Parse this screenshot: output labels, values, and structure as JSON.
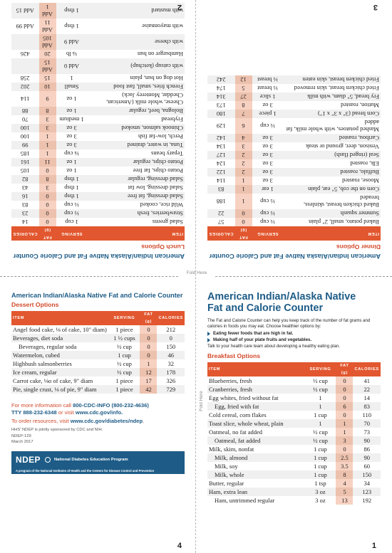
{
  "fold_label": "Fold Here",
  "page2": {
    "header": "American Indian/Alaska Native Fat and Calorie Counter",
    "subheader": "Lunch Options",
    "cols": [
      "ITEM",
      "SERVING",
      "FAT (g)",
      "CALORIES"
    ],
    "rows": [
      [
        "Salad greens",
        "1 cup",
        "0",
        "14"
      ],
      [
        "Strawberries, fresh",
        "½ cup",
        "0",
        "23"
      ],
      [
        "Wild rice, cooked",
        "½ cup",
        "0",
        "83"
      ],
      [
        "Salad dressing, fat free",
        "1 tbsp",
        "0",
        "16"
      ],
      [
        "Salad dressing, low fat",
        "1 tbsp",
        "3",
        "43"
      ],
      [
        "Salad dressing, regular",
        "1 tbsp",
        "8",
        "82"
      ],
      [
        "Potato chips, fat free",
        "1 oz",
        "0",
        "105"
      ],
      [
        "Potato chips, regular",
        "1 oz",
        "11",
        "161"
      ],
      [
        "Tepary beans",
        "¼ cup",
        "1",
        "185"
      ],
      [
        "Tuna, in water, drained",
        "3 oz",
        "1",
        "99"
      ],
      [
        "Perch, low-fat fish",
        "3 oz",
        "1",
        "100"
      ],
      [
        "Chinook salmon, smoked",
        "3 oz",
        "3",
        "100"
      ],
      [
        "Frybread",
        "1 medium",
        "3",
        "70"
      ],
      [
        "Bologna, beef, regular",
        "1 oz",
        "8",
        "88"
      ],
      [
        "Cheese, whole milk (American, Cheddar, Monterey Jack)",
        "1 oz",
        "9",
        "114"
      ],
      [
        "French fries, small, fast food",
        "Small",
        "10",
        "202"
      ],
      [
        "Hot dog on bun, plain",
        "1",
        "15",
        "258"
      ],
      [
        "with catsup (ketchup)",
        "Add 0",
        "Add 15",
        ""
      ],
      [
        "Hamburger on bun",
        "¼ lb",
        "20",
        "426"
      ],
      [
        "with cheese",
        "Add 9",
        "Add 105",
        ""
      ],
      [
        "with mayonnaise",
        "1 tbsp",
        "Add 11",
        "Add 99"
      ],
      [
        "with mustard",
        "1 tbsp",
        "Add 1",
        "Add 15"
      ]
    ],
    "page_number": "2"
  },
  "page3": {
    "header": "American Indian/Alaska Native Fat and Calorie Counter",
    "subheader": "Dinner Options",
    "cols": [
      "ITEM",
      "SERVING",
      "FAT (g)",
      "CALORIES"
    ],
    "rows": [
      [
        "Baked potato, small, 2\" plain",
        "½ cup",
        "0",
        "57"
      ],
      [
        "Summer squash",
        "½ cup",
        "0",
        "22"
      ],
      [
        "Baked chicken breast, skinless, breaded",
        "½ cup",
        "1",
        "188"
      ],
      [
        "Corn on the cob, 5\" ear, plain",
        "1 ear",
        "1",
        "83"
      ],
      [
        "Moose, roasted",
        "3 oz",
        "1",
        "114"
      ],
      [
        "Buffalo, roasted",
        "3 oz",
        "2",
        "122"
      ],
      [
        "Elk, roasted",
        "3 oz",
        "2",
        "124"
      ],
      [
        "Seal (ringed flash)",
        "3 oz",
        "2",
        "127"
      ],
      [
        "Venison, deer, ground or steak",
        "3 oz",
        "3",
        "134"
      ],
      [
        "Caribou, roasted",
        "3 oz",
        "4",
        "142"
      ],
      [
        "Mashed potatoes, with whole milk, fat added",
        "½ cup",
        "6",
        "129"
      ],
      [
        "Corn bread (3\" x 3\" x 1\")",
        "1 piece",
        "7",
        "180"
      ],
      [
        "Mutton, roasted",
        "3 oz",
        "8",
        "173"
      ],
      [
        "Fry bread, 5\" diam, with milk",
        "1 slice",
        "27",
        "314"
      ],
      [
        "Fried chicken breast, skin removed",
        "½ breast",
        "5",
        "174"
      ],
      [
        "Fried chicken breast, skin eaten",
        "½ breast",
        "12",
        "242"
      ]
    ],
    "page_number": "3"
  },
  "page4": {
    "header": "American Indian/Alaska Native Fat and Calorie Counter",
    "subheader": "Dessert Options",
    "cols": [
      "ITEM",
      "SERVING",
      "FAT (g)",
      "CALORIES"
    ],
    "rows": [
      {
        "item": "Angel food cake, ⅛ of cake, 10\" diam)",
        "srv": "1 piece",
        "fat": "0",
        "cal": "212",
        "indent": false
      },
      {
        "item": "Beverages, diet soda",
        "srv": "1 ½ cups",
        "fat": "0",
        "cal": "0",
        "indent": false
      },
      {
        "item": "Beverages, regular soda",
        "srv": "½ cup",
        "fat": "0",
        "cal": "150",
        "indent": true
      },
      {
        "item": "Watermelon, cubed",
        "srv": "1 cup",
        "fat": "0",
        "cal": "46",
        "indent": false
      },
      {
        "item": "Highbush salmonberries",
        "srv": "½ cup",
        "fat": "1",
        "cal": "32",
        "indent": false
      },
      {
        "item": "Ice cream, regular",
        "srv": "½ cup",
        "fat": "12",
        "cal": "178",
        "indent": false
      },
      {
        "item": "Carrot cake, ⅛o of cake, 9\" diam",
        "srv": "1 piece",
        "fat": "17",
        "cal": "326",
        "indent": false
      },
      {
        "item": "Pie, single crust, ⅛ of pie, 9\" diam",
        "srv": "1 piece",
        "fat": "42",
        "cal": "729",
        "indent": false
      }
    ],
    "more_info": "For more information call",
    "phone": "800-CDC-INFO (800-232-4636)",
    "tty": "TTY 888-232-6348",
    "or_visit": "or visit",
    "site1": "www.cdc.gov/info",
    "order": "To order resources, visit",
    "site2": "www.cdc.gov/diabetes/ndep",
    "hhs": "HHS' NDEP is jointly sponsored by CDC and NIH.",
    "ndep_code": "NDEP-129",
    "date": "March 2017",
    "logo": "NDEP",
    "logo_name": "National Diabetes Education Program",
    "logo_tag": "A program of the National Institutes of Health and the Centers for Disease Control and Prevention",
    "page_number": "4"
  },
  "page1": {
    "title_line1": "American Indian/Alaska Native",
    "title_line2": "Fat and Calorie Counter",
    "intro": "The Fat and Calorie Counter can help you keep track of the number of fat grams and calories in foods you may eat. Choose healthier options by:",
    "bullet1": "Eating fewer foods that are high in fat.",
    "bullet2": "Making half of your plate fruits and vegetables.",
    "talk": "Talk to your health care team about developing a healthy eating plan.",
    "subheader": "Breakfast Options",
    "cols": [
      "ITEM",
      "SERVING",
      "FAT (g)",
      "CALORIES"
    ],
    "rows": [
      {
        "item": "Blueberries, fresh",
        "srv": "½ cup",
        "fat": "0",
        "cal": "41",
        "indent": false
      },
      {
        "item": "Cranberries, fresh",
        "srv": "½ cup",
        "fat": "0",
        "cal": "22",
        "indent": false
      },
      {
        "item": "Egg whites, fried without fat",
        "srv": "1",
        "fat": "0",
        "cal": "14",
        "indent": false
      },
      {
        "item": "Egg, fried with fat",
        "srv": "1",
        "fat": "6",
        "cal": "83",
        "indent": true
      },
      {
        "item": "Cold cereal, corn flakes",
        "srv": "1 cup",
        "fat": "0",
        "cal": "110",
        "indent": false
      },
      {
        "item": "Toast slice, whole wheat, plain",
        "srv": "1",
        "fat": "1",
        "cal": "70",
        "indent": false
      },
      {
        "item": "Oatmeal, no fat added",
        "srv": "½ cup",
        "fat": "1",
        "cal": "73",
        "indent": false
      },
      {
        "item": "Oatmeal, fat added",
        "srv": "½ cup",
        "fat": "3",
        "cal": "90",
        "indent": true
      },
      {
        "item": "Milk, skim, nonfat",
        "srv": "1 cup",
        "fat": "0",
        "cal": "86",
        "indent": false
      },
      {
        "item": "Milk, almond",
        "srv": "1 cup",
        "fat": "2.5",
        "cal": "90",
        "indent": true
      },
      {
        "item": "Milk, soy",
        "srv": "1 cup",
        "fat": "3.5",
        "cal": "60",
        "indent": true
      },
      {
        "item": "Milk, whole",
        "srv": "1 cup",
        "fat": "8",
        "cal": "150",
        "indent": true
      },
      {
        "item": "Butter, regular",
        "srv": "1 tsp",
        "fat": "4",
        "cal": "34",
        "indent": false
      },
      {
        "item": "Ham, extra lean",
        "srv": "3 oz",
        "fat": "5",
        "cal": "123",
        "indent": false
      },
      {
        "item": "Ham, untrimmed regular",
        "srv": "3 oz",
        "fat": "13",
        "cal": "192",
        "indent": true
      }
    ],
    "page_number": "1"
  }
}
